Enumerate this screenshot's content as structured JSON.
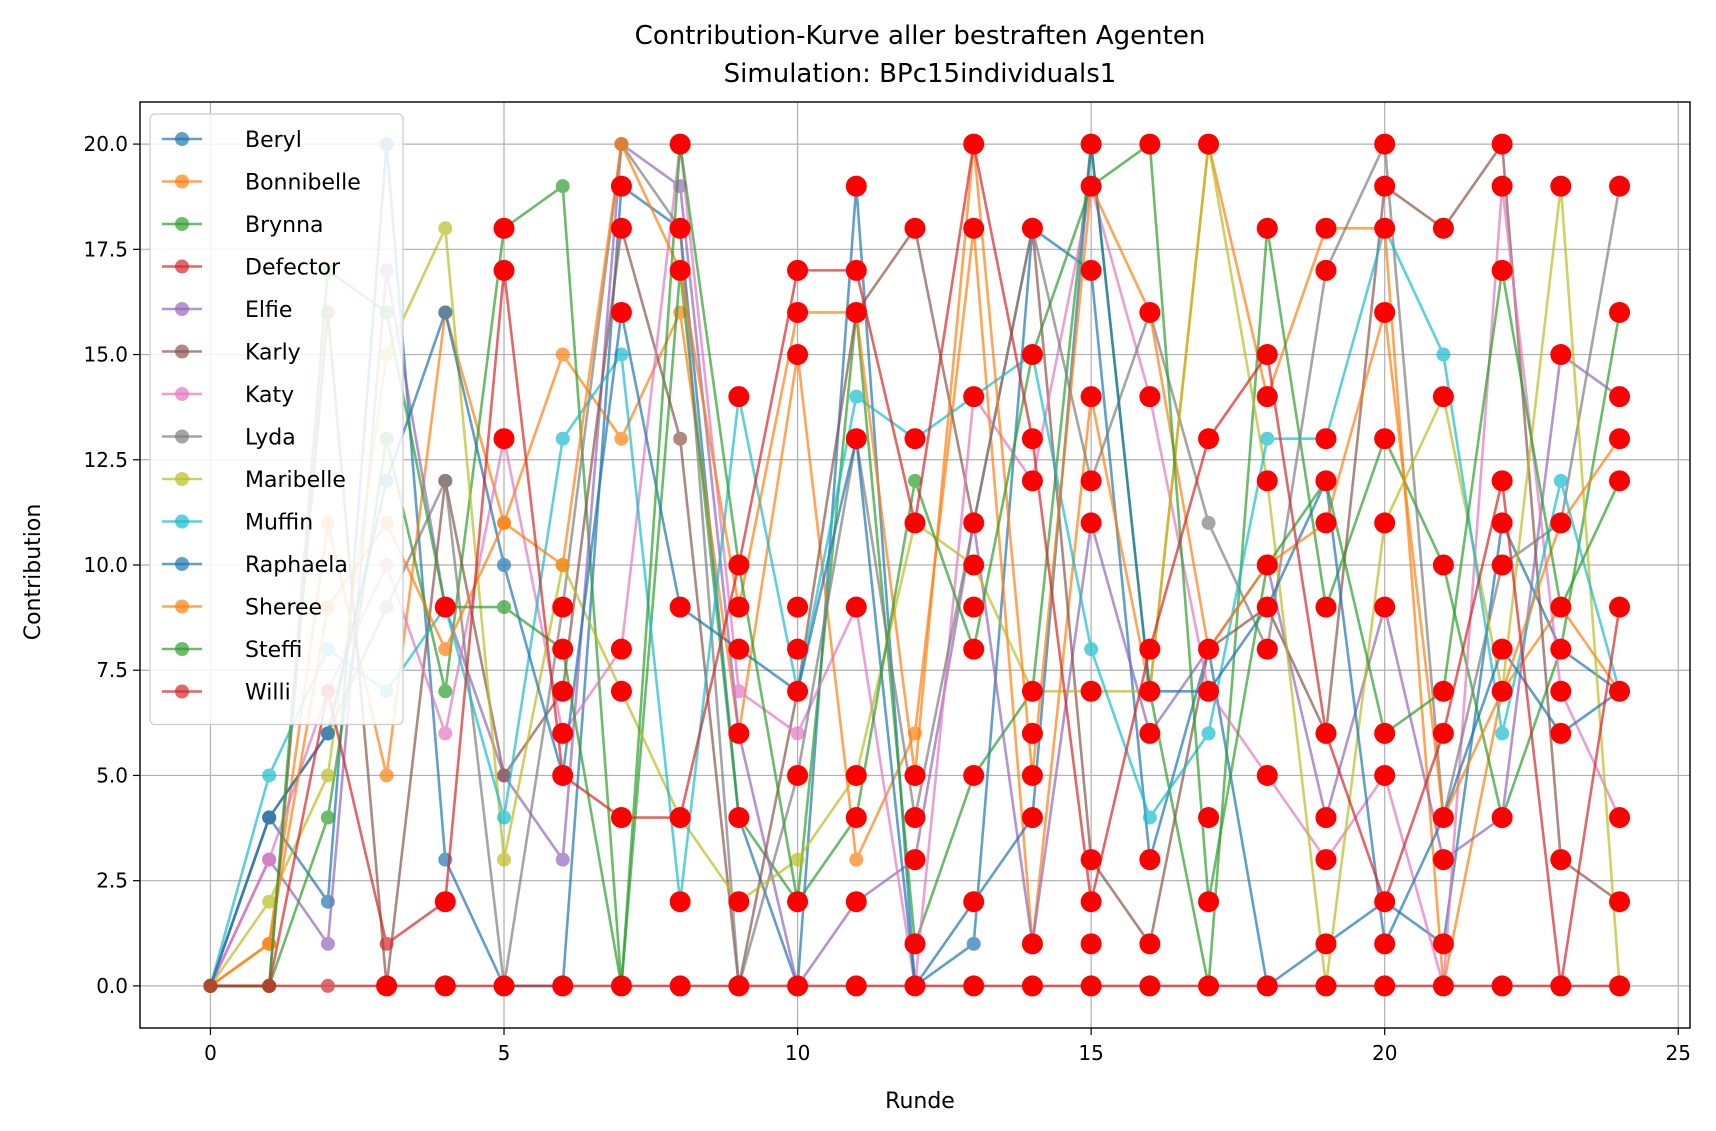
{
  "chart_data": {
    "type": "line",
    "title": "Contribution-Kurve aller bestraften Agenten",
    "subtitle": "Simulation: BPc15individuals1",
    "xlabel": "Runde",
    "ylabel": "Contribution",
    "xlim": [
      -1.2,
      25.2
    ],
    "ylim": [
      -1.0,
      21.0
    ],
    "x_ticks": [
      0,
      5,
      10,
      15,
      20,
      25
    ],
    "x_tick_labels": [
      "0",
      "5",
      "10",
      "15",
      "20",
      "25"
    ],
    "y_ticks": [
      0,
      2.5,
      5,
      7.5,
      10,
      12.5,
      15,
      17.5,
      20
    ],
    "y_tick_labels": [
      "0.0",
      "2.5",
      "5.0",
      "7.5",
      "10.0",
      "12.5",
      "15.0",
      "17.5",
      "20.0"
    ],
    "grid": true,
    "legend_position": "top-left",
    "punishment_marker_color": "#ff0000",
    "x": [
      0,
      1,
      2,
      3,
      4,
      5,
      6,
      7,
      8,
      9,
      10,
      11,
      12,
      13,
      14,
      15,
      16,
      17,
      18,
      19,
      20,
      21,
      22,
      23,
      24
    ],
    "series": [
      {
        "name": "Beryl",
        "color": "#1f77b4",
        "values": [
          0,
          4,
          2,
          20,
          3,
          0,
          0,
          19,
          18,
          4,
          0,
          19,
          0,
          1,
          18,
          17,
          3,
          8,
          0,
          1,
          2,
          1,
          11,
          8,
          7
        ]
      },
      {
        "name": "Bonnibelle",
        "color": "#ff7f0e",
        "values": [
          0,
          1,
          11,
          5,
          16,
          11,
          15,
          13,
          16,
          6,
          15,
          3,
          6,
          18,
          1,
          14,
          7,
          20,
          14,
          18,
          18,
          0,
          7,
          9,
          7
        ]
      },
      {
        "name": "Brynna",
        "color": "#2ca02c",
        "values": [
          0,
          0,
          4,
          13,
          7,
          18,
          19,
          0,
          17,
          4,
          2,
          16,
          1,
          5,
          7,
          20,
          7,
          0,
          18,
          9,
          13,
          10,
          4,
          8,
          16
        ]
      },
      {
        "name": "Defector",
        "color": "#d62728",
        "values": [
          0,
          0,
          0,
          0,
          0,
          0,
          0,
          0,
          0,
          0,
          0,
          0,
          0,
          0,
          0,
          0,
          0,
          0,
          0,
          0,
          0,
          0,
          0,
          0,
          0
        ]
      },
      {
        "name": "Elfie",
        "color": "#9467bd",
        "values": [
          0,
          3,
          1,
          17,
          9,
          5,
          3,
          20,
          19,
          6,
          0,
          2,
          3,
          11,
          1,
          11,
          6,
          8,
          10,
          4,
          9,
          3,
          4,
          15,
          14
        ]
      },
      {
        "name": "Karly",
        "color": "#8c564b",
        "values": [
          0,
          0,
          16,
          0,
          12,
          5,
          7,
          18,
          13,
          0,
          7,
          16,
          18,
          11,
          18,
          3,
          1,
          8,
          9,
          6,
          19,
          18,
          20,
          3,
          2
        ]
      },
      {
        "name": "Katy",
        "color": "#e377c2",
        "values": [
          0,
          3,
          7,
          10,
          6,
          13,
          6,
          8,
          20,
          7,
          6,
          9,
          0,
          14,
          12,
          19,
          14,
          7,
          5,
          3,
          5,
          0,
          19,
          7,
          4
        ]
      },
      {
        "name": "Lyda",
        "color": "#7f7f7f",
        "values": [
          0,
          4,
          6,
          9,
          12,
          0,
          9,
          20,
          18,
          0,
          5,
          13,
          4,
          11,
          18,
          12,
          16,
          11,
          8,
          17,
          20,
          4,
          10,
          11,
          19
        ]
      },
      {
        "name": "Maribelle",
        "color": "#bcbd22",
        "values": [
          0,
          2,
          5,
          15,
          18,
          3,
          10,
          7,
          4,
          2,
          3,
          5,
          11,
          10,
          7,
          7,
          7,
          20,
          12,
          0,
          11,
          14,
          7,
          19,
          0
        ]
      },
      {
        "name": "Muffin",
        "color": "#17becf",
        "values": [
          0,
          5,
          8,
          7,
          9,
          4,
          13,
          15,
          2,
          14,
          7,
          14,
          13,
          14,
          15,
          8,
          4,
          6,
          13,
          13,
          18,
          15,
          6,
          12,
          7
        ]
      },
      {
        "name": "Raphaela",
        "color": "#1f77b4",
        "values": [
          0,
          4,
          6,
          12,
          16,
          10,
          5,
          16,
          9,
          8,
          7,
          13,
          0,
          2,
          4,
          20,
          7,
          7,
          9,
          12,
          1,
          4,
          8,
          6,
          7
        ]
      },
      {
        "name": "Sheree",
        "color": "#ff7f0e",
        "values": [
          0,
          1,
          9,
          11,
          8,
          11,
          10,
          20,
          17,
          9,
          16,
          16,
          5,
          20,
          5,
          19,
          16,
          8,
          10,
          11,
          16,
          4,
          7,
          11,
          13
        ]
      },
      {
        "name": "Steffi",
        "color": "#2ca02c",
        "values": [
          0,
          0,
          17,
          16,
          9,
          9,
          8,
          0,
          20,
          10,
          2,
          4,
          12,
          8,
          15,
          19,
          20,
          2,
          10,
          12,
          6,
          7,
          17,
          9,
          12
        ]
      },
      {
        "name": "Willi",
        "color": "#d62728",
        "values": [
          0,
          0,
          7,
          1,
          2,
          17,
          5,
          4,
          4,
          10,
          17,
          17,
          11,
          20,
          13,
          2,
          8,
          13,
          15,
          6,
          2,
          6,
          12,
          0,
          9
        ]
      }
    ],
    "punished_points": [
      [
        3,
        0
      ],
      [
        4,
        0
      ],
      [
        5,
        0
      ],
      [
        6,
        0
      ],
      [
        7,
        0
      ],
      [
        8,
        0
      ],
      [
        9,
        0
      ],
      [
        10,
        0
      ],
      [
        11,
        0
      ],
      [
        12,
        0
      ],
      [
        13,
        0
      ],
      [
        14,
        0
      ],
      [
        15,
        0
      ],
      [
        16,
        0
      ],
      [
        17,
        0
      ],
      [
        18,
        0
      ],
      [
        19,
        0
      ],
      [
        20,
        0
      ],
      [
        21,
        0
      ],
      [
        22,
        0
      ],
      [
        23,
        0
      ],
      [
        24,
        0
      ],
      [
        4,
        2
      ],
      [
        4,
        9
      ],
      [
        5,
        13
      ],
      [
        5,
        17
      ],
      [
        5,
        18
      ],
      [
        6,
        5
      ],
      [
        6,
        6
      ],
      [
        6,
        7
      ],
      [
        6,
        8
      ],
      [
        6,
        9
      ],
      [
        7,
        4
      ],
      [
        7,
        7
      ],
      [
        7,
        8
      ],
      [
        7,
        16
      ],
      [
        7,
        18
      ],
      [
        7,
        19
      ],
      [
        8,
        2
      ],
      [
        8,
        4
      ],
      [
        8,
        9
      ],
      [
        8,
        17
      ],
      [
        8,
        18
      ],
      [
        8,
        20
      ],
      [
        9,
        2
      ],
      [
        9,
        4
      ],
      [
        9,
        6
      ],
      [
        9,
        8
      ],
      [
        9,
        9
      ],
      [
        9,
        10
      ],
      [
        9,
        14
      ],
      [
        10,
        2
      ],
      [
        10,
        5
      ],
      [
        10,
        7
      ],
      [
        10,
        8
      ],
      [
        10,
        9
      ],
      [
        10,
        15
      ],
      [
        10,
        16
      ],
      [
        10,
        17
      ],
      [
        11,
        2
      ],
      [
        11,
        4
      ],
      [
        11,
        5
      ],
      [
        11,
        9
      ],
      [
        11,
        13
      ],
      [
        11,
        16
      ],
      [
        11,
        17
      ],
      [
        11,
        19
      ],
      [
        12,
        1
      ],
      [
        12,
        3
      ],
      [
        12,
        4
      ],
      [
        12,
        5
      ],
      [
        12,
        11
      ],
      [
        12,
        13
      ],
      [
        12,
        18
      ],
      [
        13,
        2
      ],
      [
        13,
        5
      ],
      [
        13,
        8
      ],
      [
        13,
        9
      ],
      [
        13,
        10
      ],
      [
        13,
        11
      ],
      [
        13,
        14
      ],
      [
        13,
        18
      ],
      [
        13,
        20
      ],
      [
        14,
        1
      ],
      [
        14,
        4
      ],
      [
        14,
        5
      ],
      [
        14,
        6
      ],
      [
        14,
        7
      ],
      [
        14,
        12
      ],
      [
        14,
        13
      ],
      [
        14,
        15
      ],
      [
        14,
        18
      ],
      [
        15,
        1
      ],
      [
        15,
        2
      ],
      [
        15,
        3
      ],
      [
        15,
        7
      ],
      [
        15,
        11
      ],
      [
        15,
        12
      ],
      [
        15,
        14
      ],
      [
        15,
        17
      ],
      [
        15,
        19
      ],
      [
        15,
        20
      ],
      [
        16,
        1
      ],
      [
        16,
        3
      ],
      [
        16,
        6
      ],
      [
        16,
        7
      ],
      [
        16,
        8
      ],
      [
        16,
        14
      ],
      [
        16,
        16
      ],
      [
        16,
        20
      ],
      [
        17,
        2
      ],
      [
        17,
        4
      ],
      [
        17,
        7
      ],
      [
        17,
        8
      ],
      [
        17,
        13
      ],
      [
        17,
        20
      ],
      [
        18,
        5
      ],
      [
        18,
        8
      ],
      [
        18,
        9
      ],
      [
        18,
        10
      ],
      [
        18,
        12
      ],
      [
        18,
        14
      ],
      [
        18,
        15
      ],
      [
        18,
        18
      ],
      [
        19,
        1
      ],
      [
        19,
        3
      ],
      [
        19,
        4
      ],
      [
        19,
        6
      ],
      [
        19,
        9
      ],
      [
        19,
        11
      ],
      [
        19,
        12
      ],
      [
        19,
        13
      ],
      [
        19,
        17
      ],
      [
        19,
        18
      ],
      [
        20,
        1
      ],
      [
        20,
        2
      ],
      [
        20,
        5
      ],
      [
        20,
        6
      ],
      [
        20,
        9
      ],
      [
        20,
        11
      ],
      [
        20,
        13
      ],
      [
        20,
        16
      ],
      [
        20,
        18
      ],
      [
        20,
        19
      ],
      [
        20,
        20
      ],
      [
        21,
        1
      ],
      [
        21,
        3
      ],
      [
        21,
        4
      ],
      [
        21,
        6
      ],
      [
        21,
        7
      ],
      [
        21,
        10
      ],
      [
        21,
        14
      ],
      [
        21,
        18
      ],
      [
        22,
        4
      ],
      [
        22,
        7
      ],
      [
        22,
        8
      ],
      [
        22,
        10
      ],
      [
        22,
        11
      ],
      [
        22,
        12
      ],
      [
        22,
        17
      ],
      [
        22,
        19
      ],
      [
        22,
        20
      ],
      [
        23,
        3
      ],
      [
        23,
        6
      ],
      [
        23,
        7
      ],
      [
        23,
        8
      ],
      [
        23,
        9
      ],
      [
        23,
        11
      ],
      [
        23,
        15
      ],
      [
        23,
        19
      ],
      [
        24,
        2
      ],
      [
        24,
        4
      ],
      [
        24,
        7
      ],
      [
        24,
        9
      ],
      [
        24,
        12
      ],
      [
        24,
        13
      ],
      [
        24,
        14
      ],
      [
        24,
        16
      ],
      [
        24,
        19
      ]
    ]
  }
}
